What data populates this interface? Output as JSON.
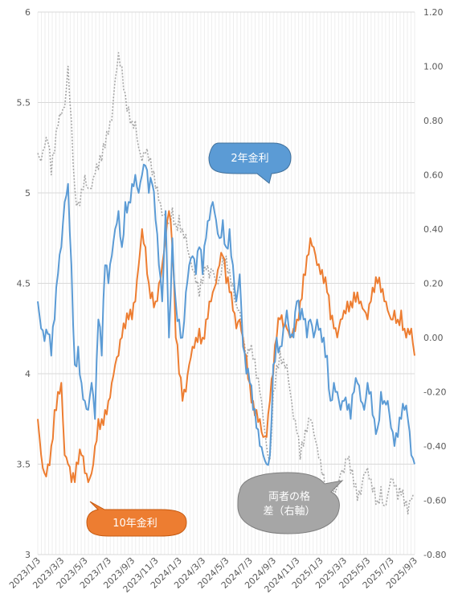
{
  "chart_data": {
    "type": "line",
    "title": "",
    "xlabel": "",
    "ylabel": "",
    "x_ticks": [
      "2023/1/3",
      "2023/3/3",
      "2023/5/3",
      "2023/7/3",
      "2023/9/3",
      "2023/11/3",
      "2024/1/3",
      "2024/3/3",
      "2024/5/3",
      "2024/7/3",
      "2024/9/3",
      "2024/11/3",
      "2025/1/3",
      "2025/3/3",
      "2025/5/3",
      "2025/7/3",
      "2025/9/3"
    ],
    "y_left": {
      "min": 3,
      "max": 6,
      "ticks": [
        "3",
        "3.5",
        "4",
        "4.5",
        "5",
        "5.5",
        "6"
      ]
    },
    "y_right": {
      "min": -0.8,
      "max": 1.2,
      "ticks": [
        "-0.80",
        "-0.60",
        "-0.40",
        "-0.20",
        "0.00",
        "0.20",
        "0.40",
        "0.60",
        "0.80",
        "1.00",
        "1.20"
      ]
    },
    "grid": true,
    "legend": "callouts",
    "series": [
      {
        "name": "2年金利",
        "axis": "left",
        "color": "#5B9BD5",
        "style": "solid",
        "values": [
          4.4,
          4.25,
          4.18,
          4.22,
          4.1,
          4.3,
          4.55,
          4.7,
          4.95,
          5.05,
          4.6,
          4.05,
          4.15,
          3.95,
          3.85,
          3.8,
          3.95,
          3.75,
          4.3,
          4.1,
          4.6,
          4.5,
          4.65,
          4.8,
          4.9,
          4.7,
          4.95,
          4.95,
          5.05,
          5.1,
          5.0,
          5.1,
          5.15,
          5.0,
          5.05,
          4.85,
          4.6,
          4.4,
          4.9,
          4.2,
          4.75,
          4.4,
          4.3,
          4.2,
          4.45,
          4.6,
          4.65,
          4.55,
          4.7,
          4.55,
          4.75,
          4.85,
          4.95,
          4.85,
          4.75,
          4.85,
          4.7,
          4.8,
          4.6,
          4.4,
          4.55,
          4.15,
          4.0,
          3.95,
          3.8,
          3.7,
          3.6,
          3.55,
          3.5,
          3.55,
          4.05,
          4.2,
          4.15,
          4.25,
          4.35,
          4.2,
          4.2,
          4.4,
          4.3,
          4.3,
          4.2,
          4.3,
          4.2,
          4.3,
          4.25,
          4.2,
          4.1,
          3.85,
          3.95,
          3.9,
          3.8,
          3.85,
          3.8,
          3.75,
          3.9,
          3.95,
          3.85,
          3.8,
          3.95,
          3.9,
          3.75,
          3.7,
          3.9,
          3.85,
          3.85,
          3.7,
          3.6,
          3.65,
          3.75,
          3.8,
          3.75,
          3.55,
          3.5
        ]
      },
      {
        "name": "10年金利",
        "axis": "left",
        "color": "#ED7D31",
        "style": "solid",
        "values": [
          3.75,
          3.55,
          3.45,
          3.5,
          3.6,
          3.8,
          3.9,
          3.95,
          3.55,
          3.5,
          3.4,
          3.4,
          3.5,
          3.55,
          3.45,
          3.4,
          3.45,
          3.6,
          3.75,
          3.75,
          3.8,
          3.85,
          3.95,
          4.05,
          4.1,
          4.2,
          4.25,
          4.3,
          4.3,
          4.4,
          4.6,
          4.8,
          4.7,
          4.5,
          4.45,
          4.4,
          4.5,
          4.6,
          4.75,
          4.9,
          4.7,
          4.2,
          4.0,
          3.85,
          3.9,
          4.05,
          4.15,
          4.2,
          4.25,
          4.2,
          4.3,
          4.4,
          4.45,
          4.5,
          4.6,
          4.65,
          4.5,
          4.45,
          4.35,
          4.25,
          4.3,
          4.2,
          4.1,
          3.95,
          3.85,
          3.8,
          3.75,
          3.65,
          3.65,
          3.85,
          4.0,
          4.2,
          4.3,
          4.25,
          4.25,
          4.2,
          4.25,
          4.3,
          4.4,
          4.55,
          4.65,
          4.75,
          4.7,
          4.6,
          4.55,
          4.5,
          4.45,
          4.3,
          4.25,
          4.2,
          4.3,
          4.35,
          4.4,
          4.4,
          4.45,
          4.45,
          4.4,
          4.35,
          4.3,
          4.4,
          4.45,
          4.5,
          4.45,
          4.4,
          4.35,
          4.3,
          4.35,
          4.3,
          4.35,
          4.25,
          4.25,
          4.25,
          4.1
        ]
      },
      {
        "name": "両者の格差（右軸）",
        "axis": "right",
        "color": "#A6A6A6",
        "style": "dotted",
        "values": [
          0.68,
          0.65,
          0.7,
          0.72,
          0.6,
          0.68,
          0.78,
          0.82,
          0.85,
          1.0,
          0.8,
          0.55,
          0.5,
          0.55,
          0.6,
          0.55,
          0.55,
          0.6,
          0.62,
          0.65,
          0.7,
          0.75,
          0.8,
          0.95,
          1.05,
          1.0,
          0.9,
          0.85,
          0.8,
          0.8,
          0.7,
          0.65,
          0.68,
          0.65,
          0.6,
          0.55,
          0.5,
          0.45,
          0.45,
          0.42,
          0.48,
          0.42,
          0.45,
          0.4,
          0.38,
          0.3,
          0.25,
          0.2,
          0.15,
          0.2,
          0.25,
          0.22,
          0.25,
          0.2,
          0.22,
          0.3,
          0.3,
          0.25,
          0.2,
          0.12,
          0.1,
          0.0,
          -0.1,
          -0.05,
          -0.08,
          -0.15,
          -0.2,
          -0.3,
          -0.4,
          -0.45,
          -0.2,
          -0.1,
          -0.05,
          -0.08,
          -0.1,
          -0.2,
          -0.3,
          -0.35,
          -0.45,
          -0.4,
          -0.35,
          -0.3,
          -0.35,
          -0.4,
          -0.45,
          -0.5,
          -0.6,
          -0.65,
          -0.55,
          -0.55,
          -0.5,
          -0.5,
          -0.45,
          -0.5,
          -0.55,
          -0.6,
          -0.58,
          -0.5,
          -0.48,
          -0.52,
          -0.55,
          -0.6,
          -0.55,
          -0.62,
          -0.58,
          -0.52,
          -0.55,
          -0.6,
          -0.58,
          -0.62,
          -0.65,
          -0.6,
          -0.58
        ]
      }
    ],
    "callouts": [
      {
        "text": "2年金利",
        "fill": "#5B9BD5",
        "text_color": "#ffffff"
      },
      {
        "text": "10年金利",
        "fill": "#ED7D31",
        "text_color": "#ffffff"
      },
      {
        "text_line1": "両者の格",
        "text_line2": "差（右軸）",
        "fill": "#A6A6A6",
        "text_color": "#ffffff"
      }
    ]
  }
}
